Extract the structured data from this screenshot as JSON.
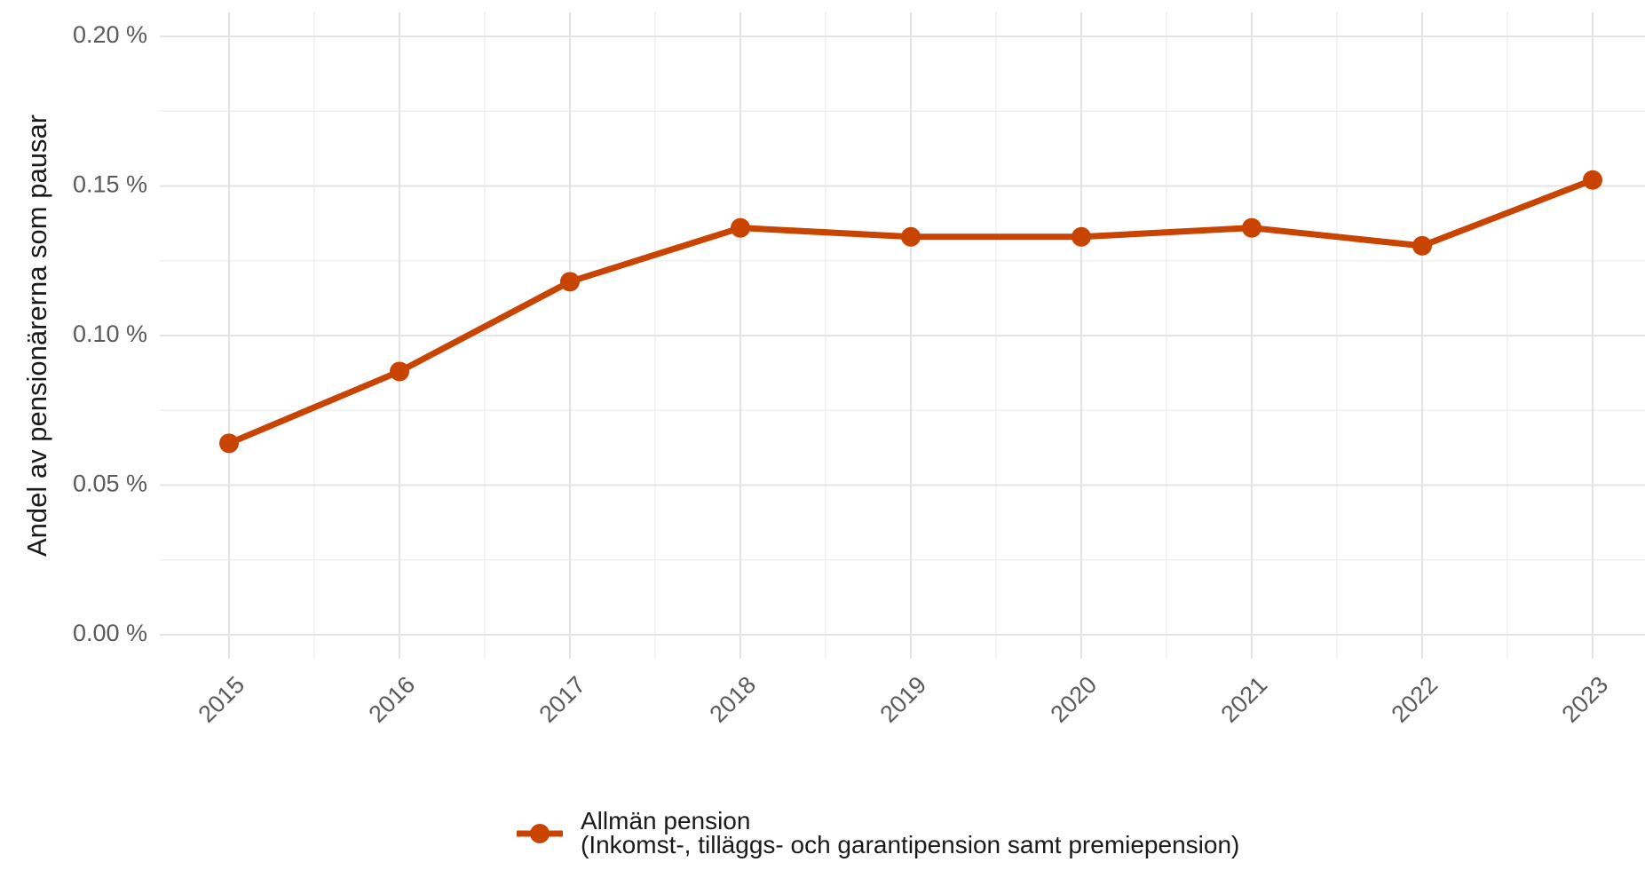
{
  "chart_data": {
    "type": "line",
    "y_axis_label": "Andel av pensionärerna som pausar",
    "categories": [
      "2015",
      "2016",
      "2017",
      "2018",
      "2019",
      "2020",
      "2021",
      "2022",
      "2023"
    ],
    "series": [
      {
        "name": "Allmän pension\n(Inkomst-, tilläggs- och garantipension samt premiepension)",
        "color": "#c84400",
        "values": [
          0.064,
          0.088,
          0.118,
          0.136,
          0.133,
          0.133,
          0.136,
          0.13,
          0.152
        ]
      }
    ],
    "ylim": [
      -0.008,
      0.208
    ],
    "yticks": [
      {
        "value": 0,
        "label": "0.00 %"
      },
      {
        "value": 0.05,
        "label": "0.05 %"
      },
      {
        "value": 0.1,
        "label": "0.10 %"
      },
      {
        "value": 0.15,
        "label": "0.15 %"
      },
      {
        "value": 0.2,
        "label": "0.20 %"
      }
    ],
    "grid": true,
    "legend": "bottom"
  }
}
